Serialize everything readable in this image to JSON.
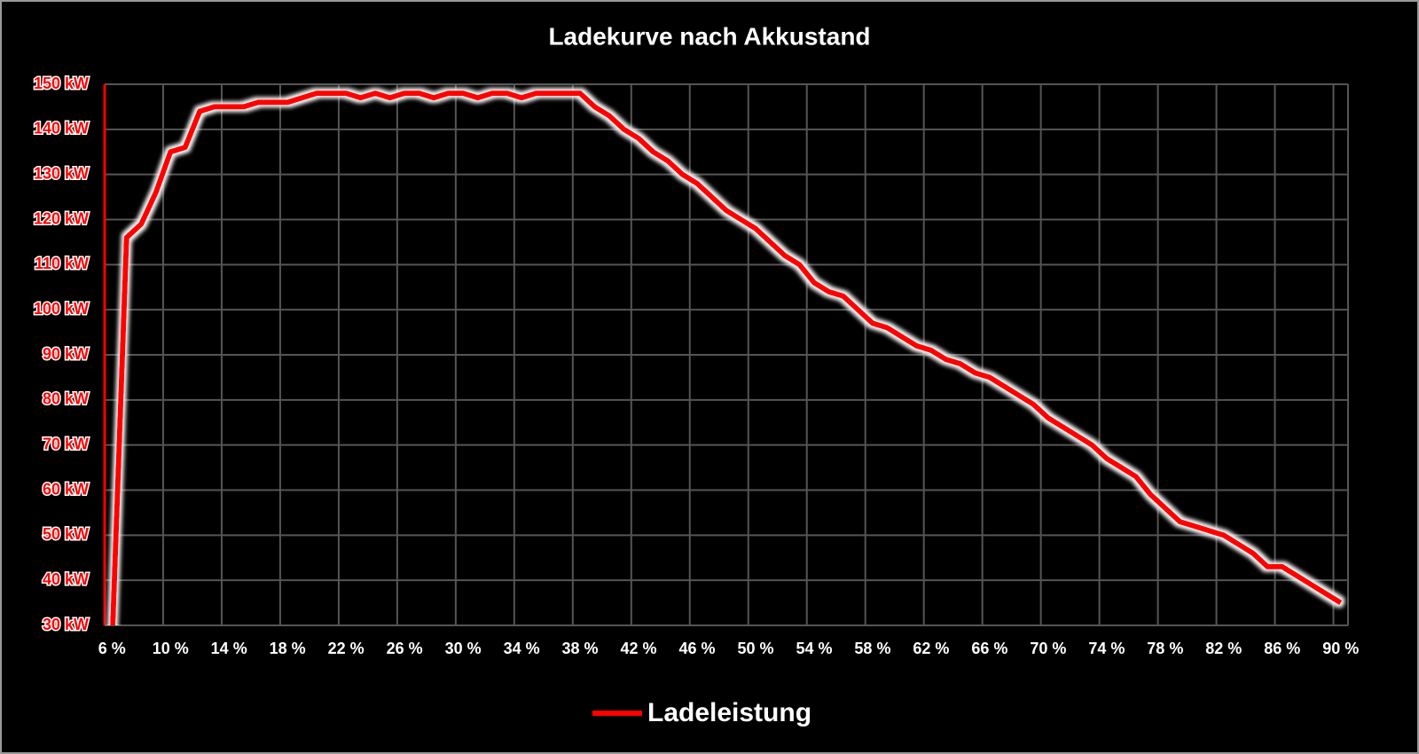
{
  "chart_data": {
    "type": "line",
    "title": "Ladekurve nach Akkustand",
    "categories": [
      "6 %",
      null,
      null,
      null,
      "10 %",
      null,
      null,
      null,
      "14 %",
      null,
      null,
      null,
      "18 %",
      null,
      null,
      null,
      "22 %",
      null,
      null,
      null,
      "26 %",
      null,
      null,
      null,
      "30 %",
      null,
      null,
      null,
      "34 %",
      null,
      null,
      null,
      "38 %",
      null,
      null,
      null,
      "42 %",
      null,
      null,
      null,
      "46 %",
      null,
      null,
      null,
      "50 %",
      null,
      null,
      null,
      "54 %",
      null,
      null,
      null,
      "58 %",
      null,
      null,
      null,
      "62 %",
      null,
      null,
      null,
      "66 %",
      null,
      null,
      null,
      "70 %",
      null,
      null,
      null,
      "74 %",
      null,
      null,
      null,
      "78 %",
      null,
      null,
      null,
      "82 %",
      null,
      null,
      null,
      "86 %",
      null,
      null,
      null,
      "90 %"
    ],
    "series": [
      {
        "name": "Ladeleistung",
        "color": "#ff0000",
        "values": [
          25,
          116,
          119,
          126,
          135,
          136,
          144,
          145,
          145,
          145,
          146,
          146,
          146,
          147,
          148,
          148,
          148,
          147,
          148,
          147,
          148,
          148,
          147,
          148,
          148,
          147,
          148,
          148,
          147,
          148,
          148,
          148,
          148,
          145,
          143,
          140,
          138,
          135,
          133,
          130,
          128,
          125,
          122,
          120,
          118,
          115,
          112,
          110,
          106,
          104,
          103,
          100,
          97,
          96,
          94,
          92,
          91,
          89,
          88,
          86,
          85,
          83,
          81,
          79,
          76,
          74,
          72,
          70,
          67,
          65,
          63,
          59,
          56,
          53,
          52,
          51,
          50,
          48,
          46,
          43,
          43,
          41,
          39,
          37,
          35
        ]
      }
    ],
    "ylim": [
      30,
      150
    ],
    "yticks": [
      {
        "value": 30,
        "label": "30 kW"
      },
      {
        "value": 40,
        "label": "40 kW"
      },
      {
        "value": 50,
        "label": "50 kW"
      },
      {
        "value": 60,
        "label": "60 kW"
      },
      {
        "value": 70,
        "label": "70 kW"
      },
      {
        "value": 80,
        "label": "80 kW"
      },
      {
        "value": 90,
        "label": "90 kW"
      },
      {
        "value": 100,
        "label": "100 kW"
      },
      {
        "value": 110,
        "label": "110 kW"
      },
      {
        "value": 120,
        "label": "120 kW"
      },
      {
        "value": 130,
        "label": "130 kW"
      },
      {
        "value": 140,
        "label": "140 kW"
      },
      {
        "value": 150,
        "label": "150 kW"
      }
    ],
    "grid": true,
    "legend": "bottom"
  }
}
